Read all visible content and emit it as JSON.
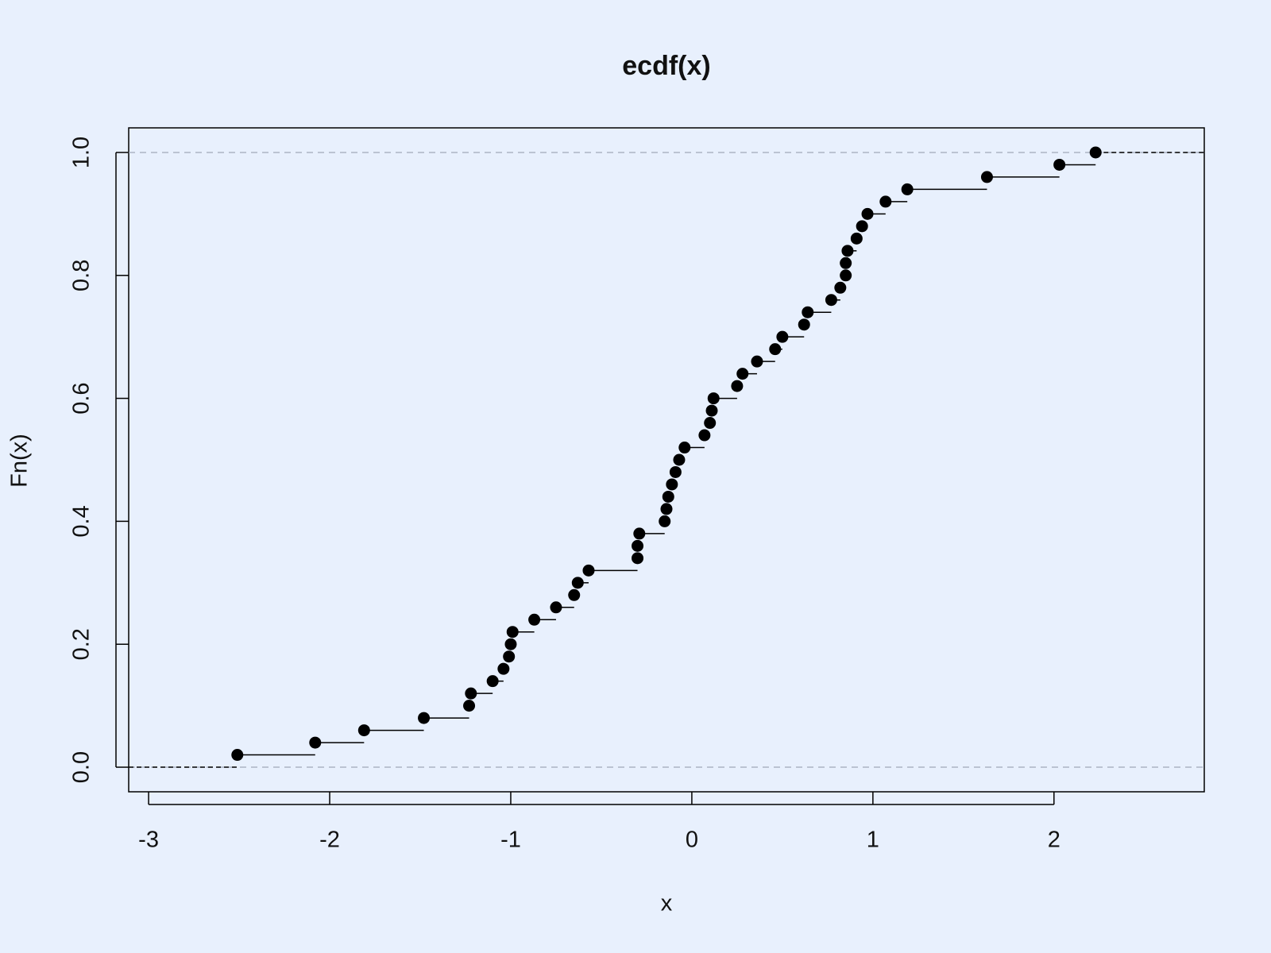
{
  "chart_data": {
    "type": "ecdf",
    "title": "ecdf(x)",
    "x_label": "x",
    "y_label": "Fn(x)",
    "x": [
      -2.51,
      -2.08,
      -1.81,
      -1.48,
      -1.23,
      -1.22,
      -1.1,
      -1.04,
      -1.01,
      -1.0,
      -0.99,
      -0.87,
      -0.75,
      -0.65,
      -0.63,
      -0.57,
      -0.3,
      -0.3,
      -0.29,
      -0.15,
      -0.14,
      -0.13,
      -0.11,
      -0.09,
      -0.07,
      -0.04,
      0.07,
      0.1,
      0.11,
      0.12,
      0.25,
      0.28,
      0.36,
      0.46,
      0.5,
      0.62,
      0.64,
      0.77,
      0.82,
      0.85,
      0.85,
      0.86,
      0.91,
      0.94,
      0.97,
      1.07,
      1.19,
      1.63,
      2.03,
      2.23
    ],
    "values": [
      0.02,
      0.04,
      0.06,
      0.08,
      0.1,
      0.12,
      0.14,
      0.16,
      0.18,
      0.2,
      0.22,
      0.24,
      0.26,
      0.28,
      0.3,
      0.32,
      0.34,
      0.36,
      0.38,
      0.4,
      0.42,
      0.44,
      0.46,
      0.48,
      0.5,
      0.52,
      0.54,
      0.56,
      0.58,
      0.6,
      0.62,
      0.64,
      0.66,
      0.68,
      0.7,
      0.72,
      0.74,
      0.76,
      0.78,
      0.8,
      0.82,
      0.84,
      0.86,
      0.88,
      0.9,
      0.92,
      0.94,
      0.96,
      0.98,
      1.0
    ],
    "color": "#000000",
    "hlines": [
      0,
      1
    ],
    "xlim": [
      -3.11,
      2.83
    ],
    "ylim": [
      -0.04,
      1.04
    ],
    "xticks": [
      -3,
      -2,
      -1,
      0,
      1,
      2
    ],
    "yticks": [
      {
        "value": 0,
        "label": "0.0"
      },
      {
        "value": 0.2,
        "label": "0.2"
      },
      {
        "value": 0.4,
        "label": "0.4"
      },
      {
        "value": 0.6,
        "label": "0.6"
      },
      {
        "value": 0.8,
        "label": "0.8"
      },
      {
        "value": 1,
        "label": "1.0"
      }
    ]
  }
}
